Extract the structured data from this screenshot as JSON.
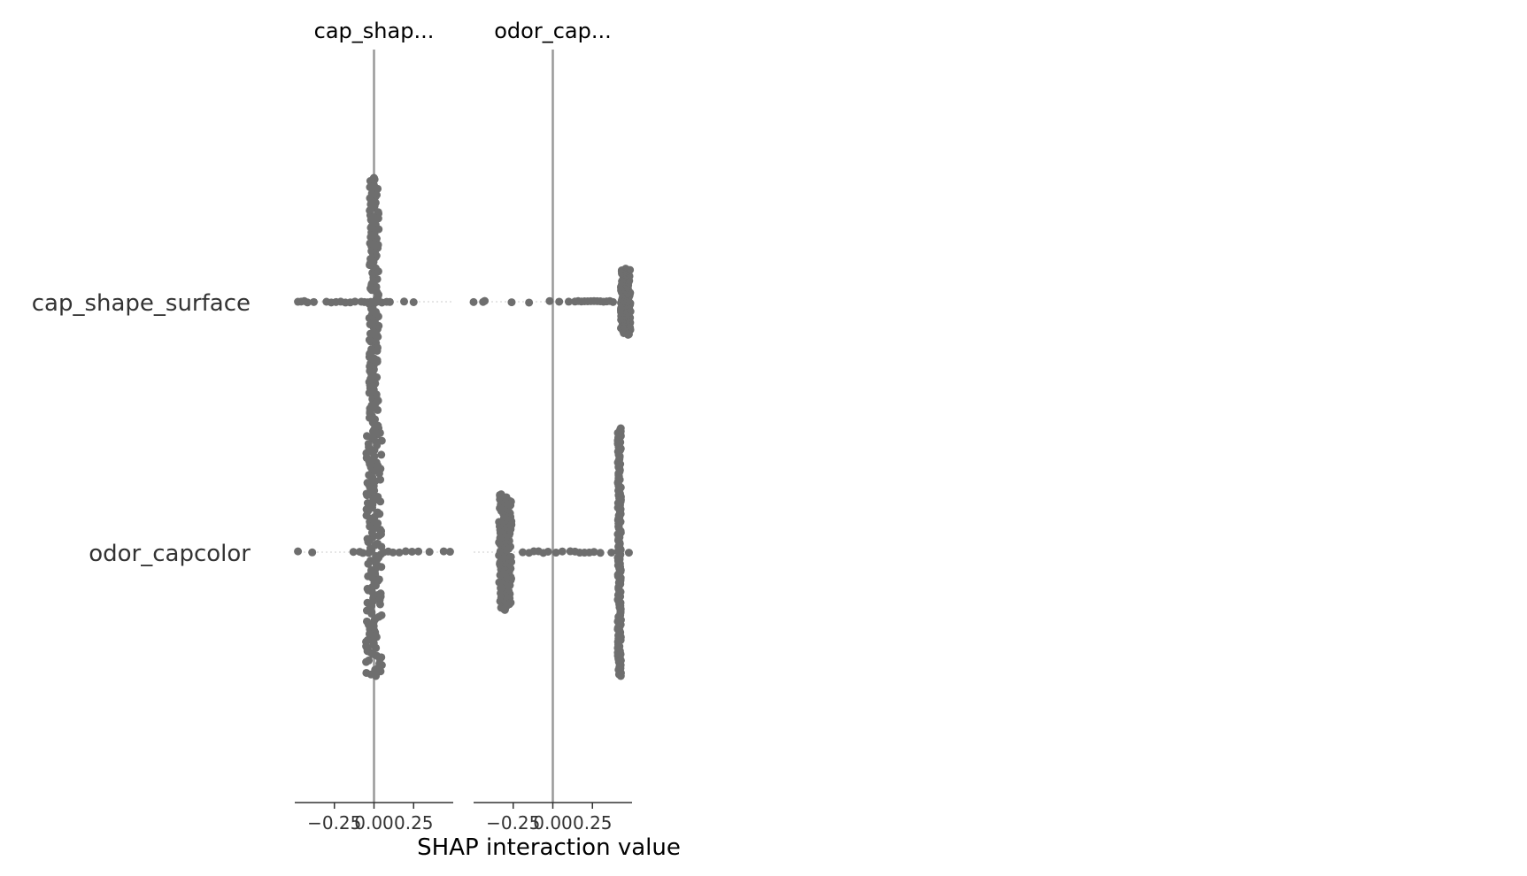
{
  "chart_data": {
    "type": "scatter",
    "title": "",
    "xlabel": "SHAP interaction value",
    "row_labels": [
      "cap_shape_surface",
      "odor_capcolor"
    ],
    "panel_titles": [
      "cap_shap...",
      "odor_cap..."
    ],
    "xticks": [
      -0.25,
      0.0,
      0.25
    ],
    "xtick_labels": [
      "−0.25",
      "0.00",
      "0.25"
    ],
    "xlim": [
      -0.5,
      0.5
    ],
    "point_color": "#6e6e6e",
    "zero_line_color": "#999999",
    "row_line_color": "#cccccc",
    "panels": [
      {
        "name": "cap_shap...",
        "rows": [
          {
            "label": "cap_shape_surface",
            "points": [
              -0.48,
              -0.46,
              -0.44,
              -0.42,
              -0.38,
              -0.3,
              -0.27,
              -0.24,
              -0.21,
              -0.18,
              -0.15,
              -0.12,
              -0.08,
              -0.06,
              -0.04,
              -0.03,
              -0.02,
              -0.01,
              0.0,
              0.01,
              0.02,
              0.03,
              0.05,
              0.08,
              0.1,
              0.19,
              0.25
            ],
            "dense_core": {
              "center": 0.0,
              "max_offset": 0.75,
              "spread": 0.03
            }
          },
          {
            "label": "odor_capcolor",
            "points": [
              -0.48,
              -0.39,
              -0.13,
              -0.09,
              -0.07,
              0.06,
              0.09,
              0.12,
              0.16,
              0.2,
              0.24,
              0.28,
              0.35,
              0.44,
              0.48
            ],
            "dense_core": {
              "center": 0.0,
              "max_offset": 0.75,
              "spread": 0.05
            }
          }
        ]
      },
      {
        "name": "odor_cap...",
        "rows": [
          {
            "label": "cap_shape_surface",
            "points": [
              -0.5,
              -0.44,
              -0.43,
              -0.26,
              -0.15,
              -0.02,
              0.04,
              0.1,
              0.14,
              0.16,
              0.18,
              0.2,
              0.22,
              0.24,
              0.26,
              0.28,
              0.3,
              0.32,
              0.34,
              0.36,
              0.38
            ],
            "dense_core": {
              "center": 0.46,
              "max_offset": 0.2,
              "spread": 0.03
            }
          },
          {
            "label": "odor_capcolor",
            "points": [
              -0.19,
              -0.15,
              -0.12,
              -0.09,
              -0.06,
              -0.03,
              0.02,
              0.06,
              0.11,
              0.14,
              0.17,
              0.2,
              0.23,
              0.26,
              0.3,
              0.37,
              0.42,
              0.48
            ],
            "dense_core": {
              "center": -0.3,
              "max_offset": 0.35,
              "spread": 0.04
            },
            "second_core": {
              "center": 0.42,
              "max_offset": 0.75,
              "spread": 0.01
            }
          }
        ]
      }
    ]
  }
}
